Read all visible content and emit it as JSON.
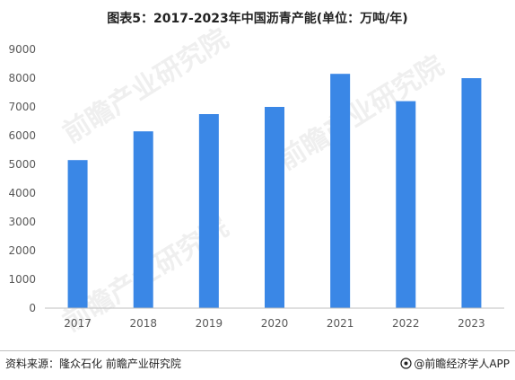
{
  "title": "图表5：2017-2023年中国沥青产能(单位：万吨/年)",
  "source": "资料来源：隆众石化 前瞻产业研究院",
  "brand": "@前瞻经济学人APP",
  "watermark": "前瞻产业研究院",
  "colors": {
    "bar": "#3a87e6",
    "axis": "#bfbfbf",
    "tick_text": "#595959"
  },
  "chart_data": {
    "type": "bar",
    "title": "图表5：2017-2023年中国沥青产能(单位：万吨/年)",
    "xlabel": "",
    "ylabel": "",
    "categories": [
      "2017",
      "2018",
      "2019",
      "2020",
      "2021",
      "2022",
      "2023"
    ],
    "series": [
      {
        "values": [
          5150,
          6150,
          6750,
          7000,
          8150,
          7200,
          8000
        ]
      }
    ],
    "ylim": [
      0,
      9000
    ],
    "yticks": [
      "0",
      "1000",
      "2000",
      "3000",
      "4000",
      "5000",
      "6000",
      "7000",
      "8000",
      "9000"
    ],
    "grid": false,
    "legend": "none"
  }
}
